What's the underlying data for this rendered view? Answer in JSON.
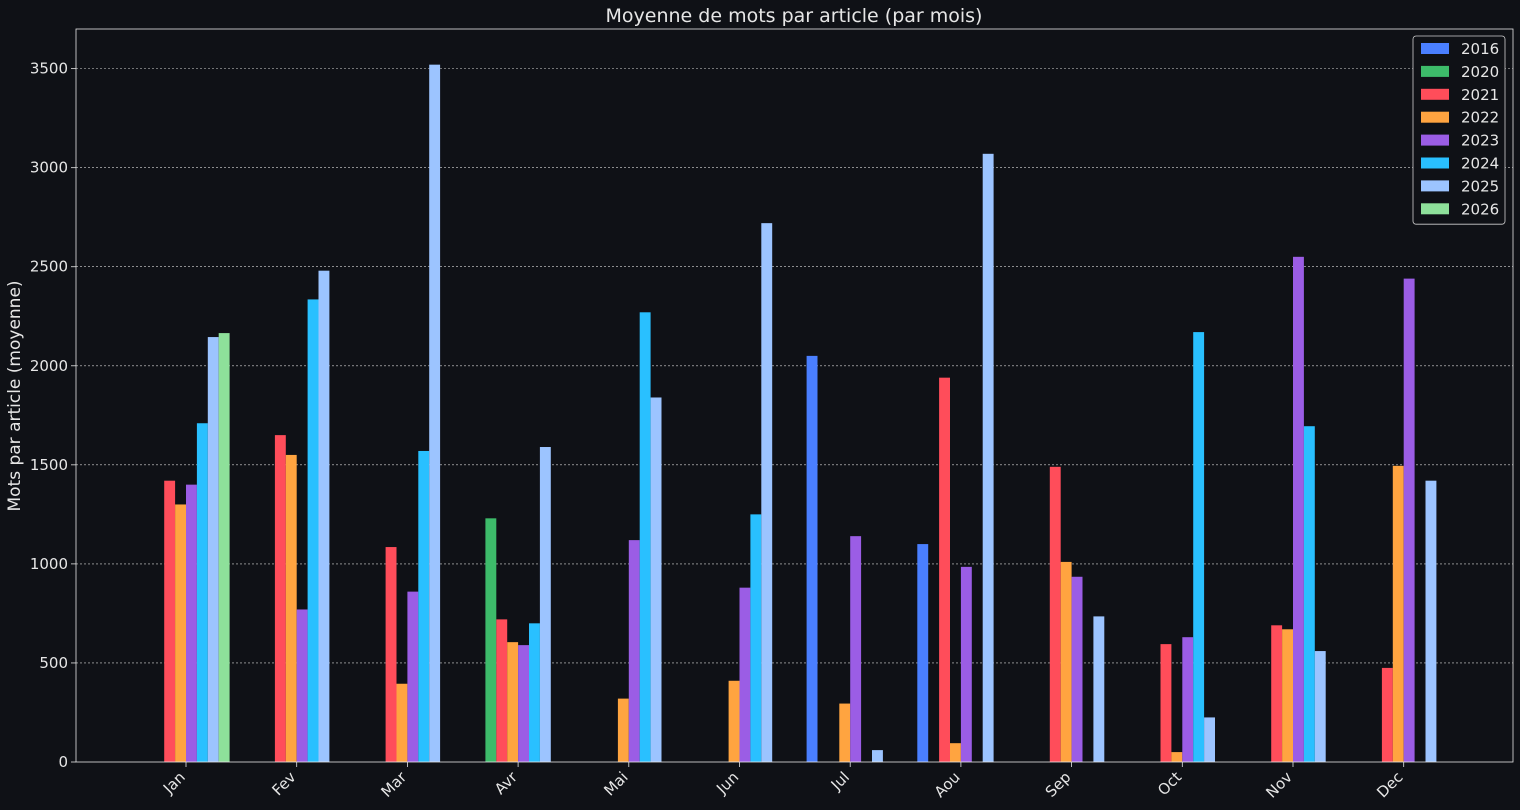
{
  "chart_data": {
    "type": "bar",
    "title": "Moyenne de mots par article (par mois)",
    "xlabel": "",
    "ylabel": "Mots par article (moyenne)",
    "ylim": [
      0,
      3700
    ],
    "yticks": [
      0,
      500,
      1000,
      1500,
      2000,
      2500,
      3000,
      3500
    ],
    "grid": "horizontal dashed",
    "legend_position": "top-right",
    "background": "#0f1116",
    "categories": [
      "Jan",
      "Fev",
      "Mar",
      "Avr",
      "Mai",
      "Jun",
      "Jul",
      "Aou",
      "Sep",
      "Oct",
      "Nov",
      "Dec"
    ],
    "series": [
      {
        "name": "2016",
        "color": "#4a7fff",
        "values": [
          0,
          0,
          0,
          0,
          0,
          0,
          2050,
          1100,
          0,
          0,
          0,
          0
        ]
      },
      {
        "name": "2020",
        "color": "#3dbb6a",
        "values": [
          0,
          0,
          0,
          1230,
          0,
          0,
          0,
          0,
          0,
          0,
          0,
          0
        ]
      },
      {
        "name": "2021",
        "color": "#ff4d5a",
        "values": [
          1420,
          1650,
          1085,
          720,
          0,
          0,
          0,
          1940,
          1490,
          595,
          690,
          475
        ]
      },
      {
        "name": "2022",
        "color": "#ffa440",
        "values": [
          1300,
          1550,
          395,
          605,
          320,
          410,
          295,
          95,
          1010,
          50,
          670,
          1495
        ]
      },
      {
        "name": "2023",
        "color": "#9b5de5",
        "values": [
          1400,
          770,
          860,
          590,
          1120,
          880,
          1140,
          985,
          935,
          630,
          2550,
          2440
        ]
      },
      {
        "name": "2024",
        "color": "#29c0ff",
        "values": [
          1710,
          2335,
          1570,
          700,
          2270,
          1250,
          0,
          0,
          0,
          2170,
          1695,
          0
        ]
      },
      {
        "name": "2025",
        "color": "#9cc4ff",
        "values": [
          2145,
          2480,
          3520,
          1590,
          1840,
          2720,
          60,
          3070,
          735,
          225,
          560,
          1420
        ]
      },
      {
        "name": "2026",
        "color": "#8ee09a",
        "values": [
          2165,
          0,
          0,
          0,
          0,
          0,
          0,
          0,
          0,
          0,
          0,
          0
        ]
      }
    ]
  }
}
